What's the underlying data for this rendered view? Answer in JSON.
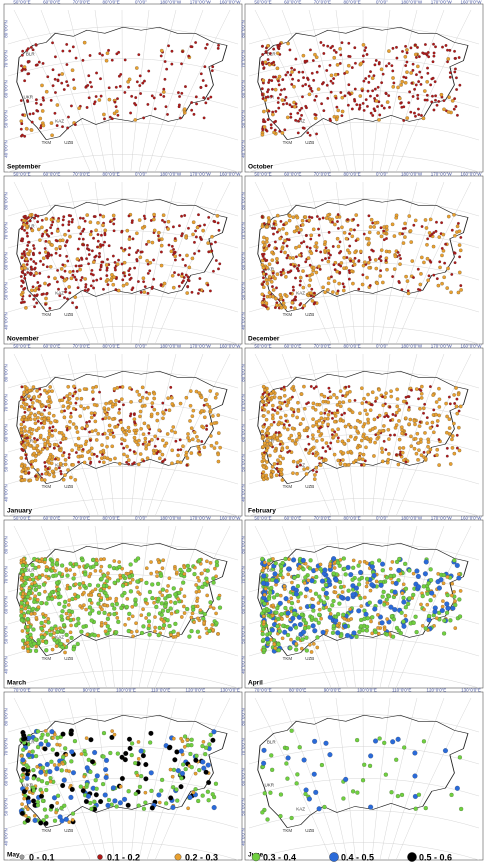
{
  "panels": [
    {
      "month": "September"
    },
    {
      "month": "October"
    },
    {
      "month": "November"
    },
    {
      "month": "December"
    },
    {
      "month": "January"
    },
    {
      "month": "February"
    },
    {
      "month": "March"
    },
    {
      "month": "April"
    },
    {
      "month": "May"
    },
    {
      "month": "June"
    }
  ],
  "top_labels": [
    "50°0'0\"E",
    "60°0'0\"E",
    "70°0'0\"E",
    "80°0'0\"E",
    "0°0'0\"",
    "180°0'0\"W",
    "170°0'0\"W",
    "160°0'0\"W"
  ],
  "bottom_labels": [
    "70°0'0\"E",
    "80°0'0\"E",
    "90°0'0\"E",
    "100°0'0\"E",
    "110°0'0\"E",
    "120°0'0\"E",
    "130°0'0\"E"
  ],
  "left_labels": [
    "80°0'0\"N",
    "70°0'0\"N",
    "60°0'0\"N",
    "50°0'0\"N",
    "40°0'0\"N"
  ],
  "country_labels": [
    "BLR",
    "UKR",
    "KAZ",
    "TKM",
    "UZB"
  ],
  "legend": [
    {
      "label": "0 - 0.1",
      "color": "#a0a0a0"
    },
    {
      "label": "0.1 - 0.2",
      "color": "#b01818"
    },
    {
      "label": "0.2 - 0.3",
      "color": "#e8a030"
    },
    {
      "label": "0.3 - 0.4",
      "color": "#70d040"
    },
    {
      "label": "0.4 - 0.5",
      "color": "#2a6ad8"
    },
    {
      "label": "0.5 - 0.6",
      "color": "#000000"
    }
  ]
}
